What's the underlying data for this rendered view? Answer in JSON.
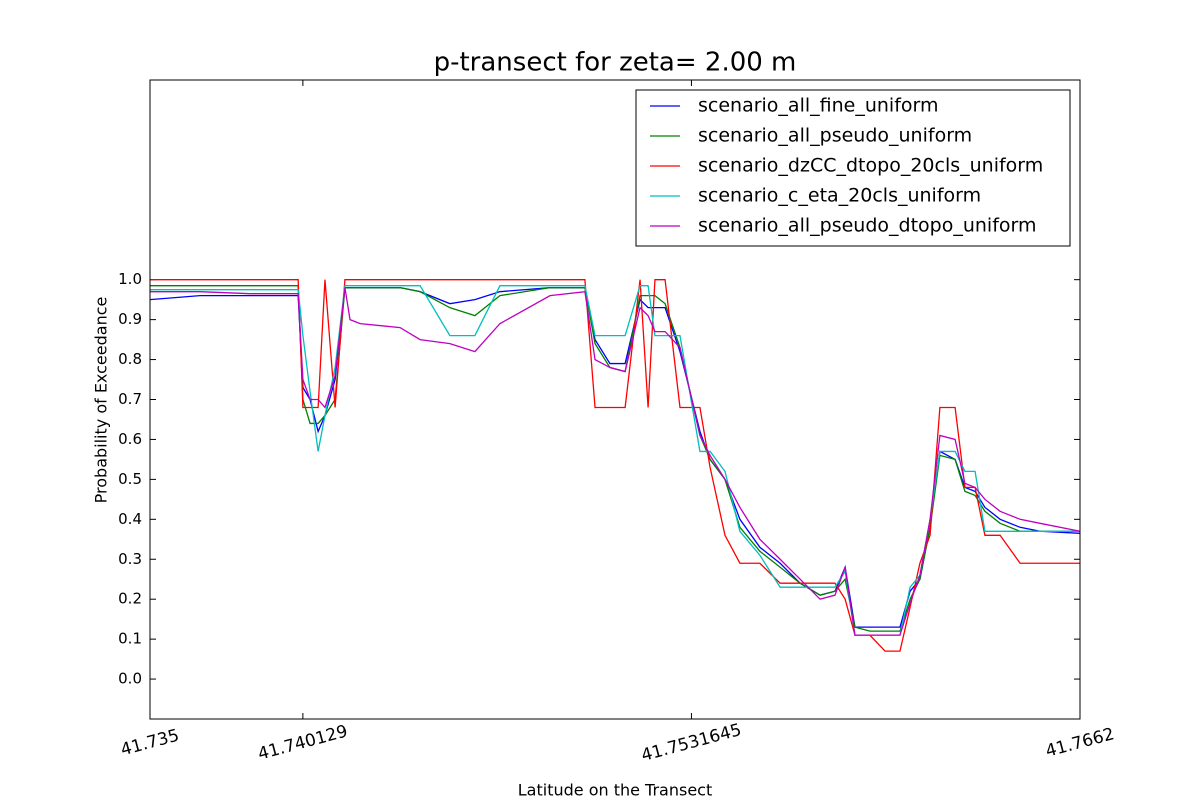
{
  "chart_data": {
    "type": "line",
    "title": "p-transect for zeta= 2.00 m",
    "xlabel": "Latitude on the Transect",
    "ylabel": "Probability of Exceedance",
    "legend": "upper right",
    "grid": false,
    "xlim": [
      41.735,
      41.7662
    ],
    "xticks": [
      41.735,
      41.740129,
      41.7531645,
      41.7662
    ],
    "ylim": [
      -0.1,
      1.5
    ],
    "yticks": [
      {
        "value": 0,
        "label": "0.0"
      },
      0.1,
      0.2,
      0.3,
      0.4,
      0.5,
      0.6,
      0.7,
      0.8,
      0.9,
      {
        "value": 1,
        "label": "1.0"
      }
    ],
    "x": [
      41.735,
      41.73668,
      41.73835,
      41.73997,
      41.74013,
      41.74037,
      41.74064,
      41.74087,
      41.74121,
      41.74154,
      41.74171,
      41.74205,
      41.74339,
      41.74406,
      41.74506,
      41.7459,
      41.74674,
      41.74842,
      41.74959,
      41.74993,
      41.75043,
      41.75094,
      41.75144,
      41.75171,
      41.75194,
      41.75228,
      41.75278,
      41.75345,
      41.75379,
      41.75429,
      41.75479,
      41.75546,
      41.75614,
      41.75681,
      41.75748,
      41.75798,
      41.75832,
      41.75865,
      41.75915,
      41.75966,
      41.76016,
      41.7605,
      41.76083,
      41.76117,
      41.7615,
      41.76201,
      41.76234,
      41.76268,
      41.76301,
      41.76352,
      41.76419,
      41.76486,
      41.7662
    ],
    "series": [
      {
        "name": "scenario_all_fine_uniform",
        "color": "#0000ff",
        "values": [
          0.95,
          0.96,
          0.96,
          0.96,
          0.73,
          0.7,
          0.62,
          0.66,
          0.75,
          0.98,
          0.98,
          0.98,
          0.98,
          0.97,
          0.94,
          0.95,
          0.97,
          0.98,
          0.98,
          0.85,
          0.79,
          0.79,
          0.95,
          0.93,
          0.93,
          0.93,
          0.82,
          0.62,
          0.55,
          0.5,
          0.4,
          0.33,
          0.29,
          0.24,
          0.21,
          0.22,
          0.28,
          0.13,
          0.13,
          0.13,
          0.13,
          0.22,
          0.25,
          0.38,
          0.57,
          0.55,
          0.48,
          0.47,
          0.43,
          0.4,
          0.38,
          0.37,
          0.365
        ]
      },
      {
        "name": "scenario_all_pseudo_uniform",
        "color": "#008000",
        "values": [
          0.985,
          0.985,
          0.985,
          0.985,
          0.7,
          0.64,
          0.64,
          0.66,
          0.7,
          0.98,
          0.98,
          0.98,
          0.98,
          0.97,
          0.93,
          0.91,
          0.96,
          0.98,
          0.98,
          0.84,
          0.78,
          0.77,
          0.96,
          0.96,
          0.96,
          0.94,
          0.83,
          0.61,
          0.55,
          0.5,
          0.38,
          0.32,
          0.28,
          0.24,
          0.21,
          0.22,
          0.25,
          0.13,
          0.12,
          0.12,
          0.12,
          0.2,
          0.25,
          0.38,
          0.56,
          0.55,
          0.47,
          0.46,
          0.42,
          0.39,
          0.37,
          0.37,
          0.37
        ]
      },
      {
        "name": "scenario_dzCC_dtopo_20cls_uniform",
        "color": "#ff0000",
        "values": [
          1,
          1,
          1,
          1,
          0.68,
          0.68,
          0.68,
          1,
          0.68,
          1,
          1,
          1,
          1,
          1,
          1,
          1,
          1,
          1,
          1,
          0.68,
          0.68,
          0.68,
          1,
          0.68,
          1,
          1,
          0.68,
          0.68,
          0.53,
          0.36,
          0.29,
          0.29,
          0.24,
          0.24,
          0.24,
          0.24,
          0.2,
          0.11,
          0.11,
          0.07,
          0.07,
          0.18,
          0.29,
          0.36,
          0.68,
          0.68,
          0.48,
          0.48,
          0.36,
          0.36,
          0.29,
          0.29,
          0.29
        ]
      },
      {
        "name": "scenario_c_eta_20cls_uniform",
        "color": "#00bfbf",
        "values": [
          0.975,
          0.975,
          0.975,
          0.975,
          0.86,
          0.72,
          0.57,
          0.66,
          0.78,
          0.985,
          0.985,
          0.985,
          0.985,
          0.985,
          0.86,
          0.86,
          0.985,
          0.985,
          0.985,
          0.86,
          0.86,
          0.86,
          0.985,
          0.985,
          0.86,
          0.86,
          0.86,
          0.57,
          0.57,
          0.52,
          0.37,
          0.31,
          0.23,
          0.23,
          0.23,
          0.23,
          0.27,
          0.11,
          0.11,
          0.11,
          0.11,
          0.23,
          0.26,
          0.4,
          0.57,
          0.57,
          0.52,
          0.52,
          0.37,
          0.37,
          0.37,
          0.37,
          0.37
        ]
      },
      {
        "name": "scenario_all_pseudo_dtopo_uniform",
        "color": "#bf00bf",
        "values": [
          0.97,
          0.97,
          0.965,
          0.965,
          0.75,
          0.7,
          0.7,
          0.68,
          0.76,
          0.98,
          0.9,
          0.89,
          0.88,
          0.85,
          0.84,
          0.82,
          0.89,
          0.96,
          0.97,
          0.8,
          0.78,
          0.77,
          0.93,
          0.91,
          0.87,
          0.87,
          0.83,
          0.61,
          0.56,
          0.5,
          0.43,
          0.35,
          0.3,
          0.25,
          0.2,
          0.21,
          0.28,
          0.11,
          0.11,
          0.11,
          0.11,
          0.19,
          0.26,
          0.4,
          0.61,
          0.6,
          0.49,
          0.48,
          0.45,
          0.42,
          0.4,
          0.39,
          0.37
        ]
      }
    ]
  }
}
